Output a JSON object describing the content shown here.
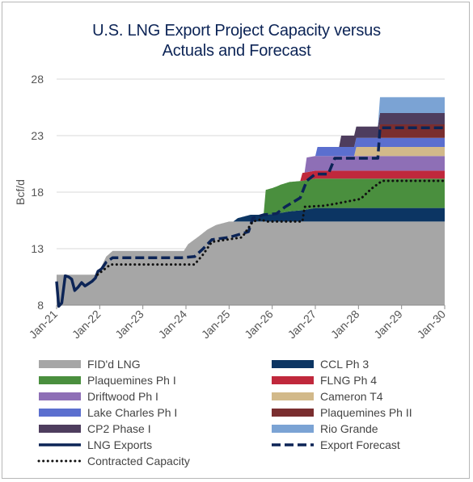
{
  "chart_data": {
    "type": "area",
    "title_lines": [
      "U.S. LNG Export Project Capacity versus",
      "Actuals and Forecast"
    ],
    "ylabel": "Bcf/d",
    "ylim": [
      8,
      28
    ],
    "yticks": [
      8,
      13,
      18,
      23,
      28
    ],
    "x_ticks": [
      "Jan-21",
      "Jan-22",
      "Jan-23",
      "Jan-24",
      "Jan-25",
      "Jan-26",
      "Jan-27",
      "Jan-28",
      "Jan-29",
      "Jan-30"
    ],
    "xlim": [
      2021.0,
      2030.0
    ],
    "grid": true,
    "legend_placement": "bottom",
    "capacity_layers": [
      {
        "name": "FID'd LNG",
        "color": "#a6a6a6",
        "points": [
          [
            2021.0,
            10.7
          ],
          [
            2021.95,
            10.7
          ],
          [
            2022.05,
            11.5
          ],
          [
            2022.15,
            12.3
          ],
          [
            2022.3,
            12.8
          ],
          [
            2023.95,
            12.8
          ],
          [
            2024.05,
            13.4
          ],
          [
            2024.3,
            14.1
          ],
          [
            2024.5,
            14.7
          ],
          [
            2024.7,
            15.1
          ],
          [
            2025.0,
            15.4
          ],
          [
            2025.5,
            15.4
          ],
          [
            2025.85,
            15.4
          ],
          [
            2030.0,
            15.4
          ]
        ]
      },
      {
        "name": "CCL Ph 3",
        "color": "#0c3563",
        "points": [
          [
            2021.0,
            0
          ],
          [
            2025.1,
            0
          ],
          [
            2025.2,
            0.3
          ],
          [
            2025.5,
            0.6
          ],
          [
            2025.85,
            0.6
          ],
          [
            2026.1,
            0.7
          ],
          [
            2026.4,
            0.9
          ],
          [
            2026.7,
            1.0
          ],
          [
            2027.0,
            1.2
          ],
          [
            2030.0,
            1.2
          ]
        ]
      },
      {
        "name": "Plaquemines Ph I",
        "color": "#4a8f3e",
        "points": [
          [
            2021.0,
            0
          ],
          [
            2025.8,
            0
          ],
          [
            2025.85,
            2.2
          ],
          [
            2026.0,
            2.3
          ],
          [
            2026.2,
            2.5
          ],
          [
            2026.4,
            2.6
          ],
          [
            2030.0,
            2.6
          ]
        ]
      },
      {
        "name": "FLNG Ph 4",
        "color": "#c0283c",
        "points": [
          [
            2021.0,
            0
          ],
          [
            2026.65,
            0
          ],
          [
            2026.7,
            0.7
          ],
          [
            2030.0,
            0.7
          ]
        ]
      },
      {
        "name": "Driftwood Ph I",
        "color": "#8e6fb6",
        "points": [
          [
            2021.0,
            0
          ],
          [
            2026.75,
            0
          ],
          [
            2026.8,
            1.3
          ],
          [
            2030.0,
            1.3
          ]
        ]
      },
      {
        "name": "Cameron T4",
        "color": "#d2b98a",
        "points": [
          [
            2021.0,
            0
          ],
          [
            2027.9,
            0
          ],
          [
            2027.95,
            0.8
          ],
          [
            2030.0,
            0.8
          ]
        ]
      },
      {
        "name": "Lake Charles Ph I",
        "color": "#5b6fcf",
        "points": [
          [
            2021.0,
            0
          ],
          [
            2027.0,
            0
          ],
          [
            2027.05,
            0.8
          ],
          [
            2030.0,
            0.8
          ]
        ]
      },
      {
        "name": "Plaquemines Ph II",
        "color": "#7a2e2f",
        "points": [
          [
            2021.0,
            0
          ],
          [
            2028.45,
            0
          ],
          [
            2028.5,
            1.2
          ],
          [
            2030.0,
            1.2
          ]
        ]
      },
      {
        "name": "CP2 Phase I",
        "color": "#4e3d5e",
        "points": [
          [
            2021.0,
            0
          ],
          [
            2027.55,
            0
          ],
          [
            2027.6,
            1.0
          ],
          [
            2030.0,
            1.0
          ]
        ]
      },
      {
        "name": "Rio Grande",
        "color": "#7ba3d4",
        "points": [
          [
            2021.0,
            0
          ],
          [
            2028.45,
            0
          ],
          [
            2028.5,
            1.4
          ],
          [
            2030.0,
            1.4
          ]
        ]
      }
    ],
    "lines": [
      {
        "name": "LNG Exports",
        "color": "#0c2456",
        "style": "solid",
        "points": [
          [
            2021.0,
            10.1
          ],
          [
            2021.05,
            7.9
          ],
          [
            2021.12,
            8.2
          ],
          [
            2021.2,
            10.6
          ],
          [
            2021.28,
            10.5
          ],
          [
            2021.35,
            10.3
          ],
          [
            2021.42,
            9.3
          ],
          [
            2021.5,
            9.6
          ],
          [
            2021.58,
            10.0
          ],
          [
            2021.66,
            9.7
          ],
          [
            2021.74,
            9.9
          ],
          [
            2021.82,
            10.1
          ],
          [
            2021.9,
            10.4
          ],
          [
            2021.96,
            11.0
          ],
          [
            2022.04,
            11.2
          ]
        ]
      },
      {
        "name": "Export Forecast",
        "color": "#0c2456",
        "style": "dashed",
        "points": [
          [
            2022.04,
            11.2
          ],
          [
            2022.15,
            11.8
          ],
          [
            2022.3,
            12.2
          ],
          [
            2023.9,
            12.2
          ],
          [
            2024.2,
            12.3
          ],
          [
            2024.4,
            13.0
          ],
          [
            2024.6,
            13.8
          ],
          [
            2025.0,
            14.0
          ],
          [
            2025.45,
            14.5
          ],
          [
            2025.55,
            15.7
          ],
          [
            2025.8,
            16.0
          ],
          [
            2026.1,
            16.1
          ],
          [
            2026.3,
            16.7
          ],
          [
            2026.65,
            17.5
          ],
          [
            2026.8,
            19.0
          ],
          [
            2027.0,
            19.6
          ],
          [
            2027.3,
            19.6
          ],
          [
            2027.45,
            21.0
          ],
          [
            2028.45,
            21.0
          ],
          [
            2028.5,
            23.7
          ],
          [
            2030.0,
            23.7
          ]
        ]
      },
      {
        "name": "Contracted Capacity",
        "color": "#111111",
        "style": "dotted",
        "points": [
          [
            2021.95,
            10.7
          ],
          [
            2022.05,
            11.0
          ],
          [
            2022.25,
            11.6
          ],
          [
            2024.2,
            11.6
          ],
          [
            2024.4,
            12.5
          ],
          [
            2024.6,
            13.6
          ],
          [
            2025.3,
            14.0
          ],
          [
            2025.55,
            15.4
          ],
          [
            2025.75,
            15.6
          ],
          [
            2025.85,
            15.4
          ],
          [
            2026.7,
            15.4
          ],
          [
            2026.75,
            16.7
          ],
          [
            2027.2,
            16.8
          ],
          [
            2027.5,
            17.0
          ],
          [
            2028.05,
            17.4
          ],
          [
            2028.3,
            18.3
          ],
          [
            2028.55,
            19.0
          ],
          [
            2030.0,
            19.0
          ]
        ]
      }
    ],
    "legend": [
      {
        "label": "FID'd LNG",
        "kind": "box",
        "color": "#a6a6a6",
        "col": 0
      },
      {
        "label": "CCL Ph 3",
        "kind": "box",
        "color": "#0c3563",
        "col": 1
      },
      {
        "label": "Plaquemines Ph I",
        "kind": "box",
        "color": "#4a8f3e",
        "col": 0
      },
      {
        "label": "FLNG Ph 4",
        "kind": "box",
        "color": "#c0283c",
        "col": 1
      },
      {
        "label": "Driftwood Ph I",
        "kind": "box",
        "color": "#8e6fb6",
        "col": 0
      },
      {
        "label": "Cameron T4",
        "kind": "box",
        "color": "#d2b98a",
        "col": 1
      },
      {
        "label": "Lake Charles Ph I",
        "kind": "box",
        "color": "#5b6fcf",
        "col": 0
      },
      {
        "label": "Plaquemines Ph II",
        "kind": "box",
        "color": "#7a2e2f",
        "col": 1
      },
      {
        "label": "CP2 Phase I",
        "kind": "box",
        "color": "#4e3d5e",
        "col": 0
      },
      {
        "label": "Rio Grande",
        "kind": "box",
        "color": "#7ba3d4",
        "col": 1
      },
      {
        "label": "LNG Exports",
        "kind": "solid",
        "color": "#0c2456",
        "col": 0
      },
      {
        "label": "Export Forecast",
        "kind": "dashed",
        "color": "#0c2456",
        "col": 1
      },
      {
        "label": "Contracted Capacity",
        "kind": "dotted",
        "color": "#111111",
        "col": 0
      }
    ]
  }
}
